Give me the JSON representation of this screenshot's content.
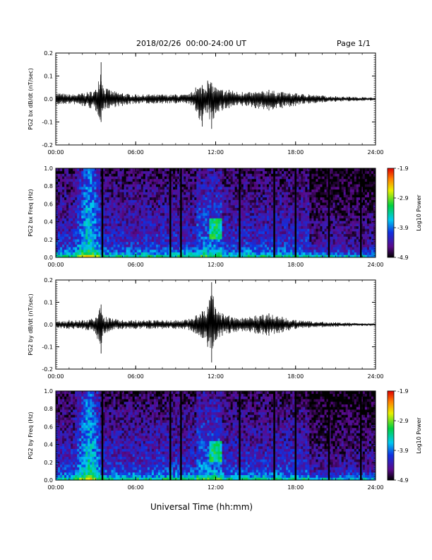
{
  "header": {
    "title": "2018/02/26  00:00-24:00 UT",
    "page": "Page 1/1"
  },
  "footer": {
    "xlabel": "Universal Time (hh:mm)"
  },
  "colorbar": {
    "label": "Log10 Power",
    "ticks": [
      "-1.9",
      "-2.9",
      "-3.9",
      "-4.9"
    ]
  },
  "colors": {
    "axis": "#000000",
    "trace": "#000000",
    "background": "#ffffff"
  },
  "chart_data": [
    {
      "type": "line",
      "ylabel": "PG2 bx dB/dt (nT/sec)",
      "xlim": [
        0,
        24
      ],
      "ylim": [
        -0.2,
        0.2
      ],
      "x_ticks": [
        "00:00",
        "06:00",
        "12:00",
        "18:00",
        "24:00"
      ],
      "y_ticks": [
        "0.2",
        "0.1",
        "0.0",
        "-0.1",
        "-0.2"
      ],
      "series": [
        {
          "x": [
            0,
            1,
            2,
            3,
            3.4,
            3.5,
            4,
            5,
            6,
            7,
            8,
            9,
            10,
            10.5,
            11,
            11.4,
            11.7,
            12,
            12.5,
            13,
            14,
            15,
            16,
            17,
            18,
            19,
            20,
            21,
            22,
            23,
            24
          ],
          "y": [
            0.03,
            0.02,
            0.025,
            0.04,
            0.16,
            0.06,
            0.04,
            0.025,
            0.02,
            0.02,
            0.02,
            0.02,
            0.02,
            0.05,
            0.06,
            0.08,
            0.07,
            0.05,
            0.04,
            0.04,
            0.03,
            0.03,
            0.04,
            0.03,
            0.025,
            0.02,
            0.015,
            0.012,
            0.01,
            0.008,
            0.006
          ],
          "y_min": [
            -0.03,
            -0.02,
            -0.03,
            -0.05,
            -0.1,
            -0.05,
            -0.04,
            -0.03,
            -0.02,
            -0.02,
            -0.02,
            -0.02,
            -0.02,
            -0.05,
            -0.12,
            -0.06,
            -0.13,
            -0.06,
            -0.05,
            -0.04,
            -0.03,
            -0.04,
            -0.05,
            -0.04,
            -0.03,
            -0.02,
            -0.015,
            -0.012,
            -0.01,
            -0.008,
            -0.006
          ]
        }
      ]
    },
    {
      "type": "heatmap",
      "ylabel": "PG2 bx Freq (Hz)",
      "xlim": [
        0,
        24
      ],
      "ylim": [
        0,
        1.0
      ],
      "zlim": [
        -4.9,
        -1.9
      ],
      "x_ticks": [
        "00:00",
        "06:00",
        "12:00",
        "18:00",
        "24:00"
      ],
      "y_ticks": [
        "1.0",
        "0.8",
        "0.6",
        "0.4",
        "0.2",
        "0.0"
      ],
      "gap_hours": [
        3.5,
        8.6,
        9.4,
        13.8,
        16.4,
        18.0,
        20.5,
        22.9
      ]
    },
    {
      "type": "line",
      "ylabel": "PG2 by dB/dt (nT/sec)",
      "xlim": [
        0,
        24
      ],
      "ylim": [
        -0.2,
        0.2
      ],
      "x_ticks": [
        "00:00",
        "06:00",
        "12:00",
        "18:00",
        "24:00"
      ],
      "y_ticks": [
        "0.2",
        "0.1",
        "0.0",
        "-0.1",
        "-0.2"
      ],
      "series": [
        {
          "x": [
            0,
            1,
            2,
            3,
            3.4,
            3.5,
            4,
            5,
            6,
            7,
            8,
            9,
            10,
            10.5,
            11,
            11.4,
            11.7,
            12,
            12.5,
            13,
            14,
            15,
            16,
            17,
            18,
            19,
            20,
            21,
            22,
            23,
            24
          ],
          "y": [
            0.015,
            0.02,
            0.02,
            0.03,
            0.09,
            0.04,
            0.03,
            0.02,
            0.02,
            0.02,
            0.02,
            0.02,
            0.025,
            0.04,
            0.06,
            0.08,
            0.19,
            0.07,
            0.05,
            0.04,
            0.03,
            0.04,
            0.05,
            0.035,
            0.02,
            0.015,
            0.012,
            0.01,
            0.008,
            0.006,
            0.005
          ],
          "y_min": [
            -0.015,
            -0.02,
            -0.02,
            -0.04,
            -0.13,
            -0.05,
            -0.03,
            -0.02,
            -0.02,
            -0.02,
            -0.02,
            -0.02,
            -0.025,
            -0.04,
            -0.06,
            -0.1,
            -0.17,
            -0.07,
            -0.05,
            -0.04,
            -0.03,
            -0.04,
            -0.05,
            -0.035,
            -0.02,
            -0.015,
            -0.012,
            -0.01,
            -0.008,
            -0.006,
            -0.005
          ]
        }
      ]
    },
    {
      "type": "heatmap",
      "ylabel": "PG2 by Freq (Hz)",
      "xlim": [
        0,
        24
      ],
      "ylim": [
        0,
        1.0
      ],
      "zlim": [
        -4.9,
        -1.9
      ],
      "x_ticks": [
        "00:00",
        "06:00",
        "12:00",
        "18:00",
        "24:00"
      ],
      "y_ticks": [
        "1.0",
        "0.8",
        "0.6",
        "0.4",
        "0.2",
        "0.0"
      ],
      "gap_hours": [
        3.5,
        8.6,
        9.4,
        13.8,
        16.4,
        18.0,
        20.5,
        22.9
      ]
    }
  ]
}
